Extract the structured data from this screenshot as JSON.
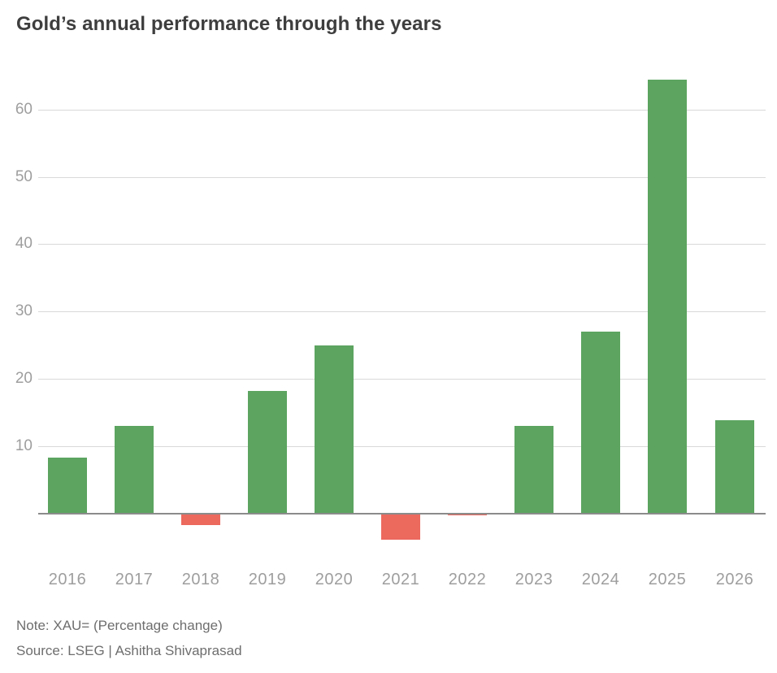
{
  "title": "Gold’s annual performance through the years",
  "note": "Note: XAU= (Percentage change)",
  "source": "Source: LSEG | Ashitha Shivaprasad",
  "colors": {
    "positive_bar": "#5ca460",
    "negative_bar": "#ec695e",
    "gridline": "#d9d9d9",
    "baseline": "#8b8b8b",
    "title_text": "#3e3e3e",
    "axis_tick_text": "#9e9e9e",
    "note_text": "#6e6e6e",
    "background": "#ffffff"
  },
  "chart_data": {
    "type": "bar",
    "title": "Gold’s annual performance through the years",
    "categories": [
      "2016",
      "2017",
      "2018",
      "2019",
      "2020",
      "2021",
      "2022",
      "2023",
      "2024",
      "2025",
      "2026"
    ],
    "values": [
      8.5,
      13.1,
      -1.7,
      18.3,
      25.1,
      -3.9,
      -0.3,
      13.1,
      27.2,
      64.5,
      14.0
    ],
    "unit": "percent change",
    "xlabel": "",
    "ylabel": "",
    "yticks": [
      10,
      20,
      30,
      40,
      50,
      60
    ],
    "ylim": [
      -5,
      66
    ],
    "grid": true,
    "legend_position": "none",
    "positive_color": "#5ca460",
    "negative_color": "#ec695e",
    "note": "Note: XAU= (Percentage change)",
    "source": "Source: LSEG | Ashitha Shivaprasad"
  }
}
